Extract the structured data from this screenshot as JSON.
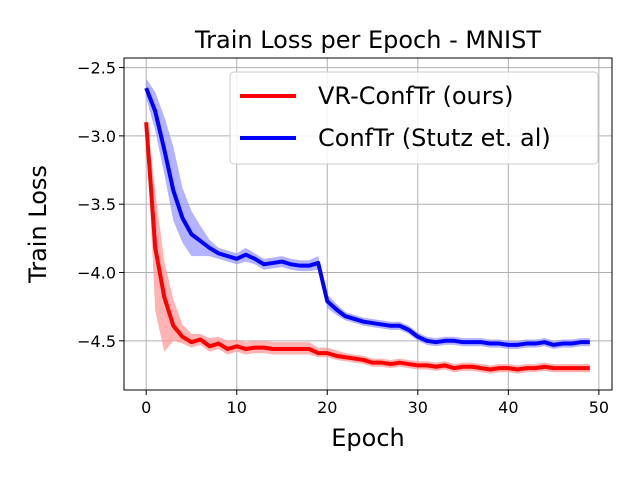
{
  "chart_data": {
    "type": "line",
    "title": "Train Loss per Epoch - MNIST",
    "xlabel": "Epoch",
    "ylabel": "Train Loss",
    "xlim": [
      -2.45,
      51.45
    ],
    "ylim": [
      -4.86,
      -2.43
    ],
    "xticks": [
      0,
      10,
      20,
      30,
      40,
      50
    ],
    "yticks": [
      -2.5,
      -3.0,
      -3.5,
      -4.0,
      -4.5
    ],
    "ytick_labels": [
      "−2.5",
      "−3.0",
      "−3.5",
      "−4.0",
      "−4.5"
    ],
    "grid": true,
    "legend_position": "top-right",
    "x": [
      0,
      1,
      2,
      3,
      4,
      5,
      6,
      7,
      8,
      9,
      10,
      11,
      12,
      13,
      14,
      15,
      16,
      17,
      18,
      19,
      20,
      21,
      22,
      23,
      24,
      25,
      26,
      27,
      28,
      29,
      30,
      31,
      32,
      33,
      34,
      35,
      36,
      37,
      38,
      39,
      40,
      41,
      42,
      43,
      44,
      45,
      46,
      47,
      48,
      49
    ],
    "series": [
      {
        "name": "VR-ConfTr (ours)",
        "color": "#ff0000",
        "band_color": "#ff9a9a",
        "values": [
          -2.9,
          -3.82,
          -4.18,
          -4.39,
          -4.47,
          -4.51,
          -4.49,
          -4.54,
          -4.52,
          -4.56,
          -4.54,
          -4.56,
          -4.55,
          -4.55,
          -4.56,
          -4.56,
          -4.56,
          -4.56,
          -4.56,
          -4.59,
          -4.59,
          -4.61,
          -4.62,
          -4.63,
          -4.64,
          -4.66,
          -4.66,
          -4.67,
          -4.66,
          -4.67,
          -4.68,
          -4.68,
          -4.69,
          -4.68,
          -4.7,
          -4.69,
          -4.69,
          -4.7,
          -4.71,
          -4.7,
          -4.7,
          -4.71,
          -4.7,
          -4.7,
          -4.69,
          -4.7,
          -4.7,
          -4.7,
          -4.7,
          -4.7
        ],
        "upper": [
          -2.88,
          -3.4,
          -3.92,
          -4.2,
          -4.38,
          -4.45,
          -4.45,
          -4.48,
          -4.47,
          -4.5,
          -4.49,
          -4.51,
          -4.5,
          -4.5,
          -4.51,
          -4.51,
          -4.51,
          -4.51,
          -4.51,
          -4.55,
          -4.55,
          -4.57,
          -4.59,
          -4.6,
          -4.61,
          -4.63,
          -4.63,
          -4.64,
          -4.63,
          -4.64,
          -4.65,
          -4.65,
          -4.66,
          -4.65,
          -4.67,
          -4.66,
          -4.66,
          -4.67,
          -4.68,
          -4.67,
          -4.67,
          -4.68,
          -4.67,
          -4.67,
          -4.66,
          -4.67,
          -4.67,
          -4.67,
          -4.67,
          -4.67
        ],
        "lower": [
          -2.92,
          -4.28,
          -4.58,
          -4.5,
          -4.52,
          -4.55,
          -4.53,
          -4.58,
          -4.56,
          -4.6,
          -4.58,
          -4.6,
          -4.59,
          -4.59,
          -4.6,
          -4.6,
          -4.6,
          -4.6,
          -4.6,
          -4.62,
          -4.62,
          -4.64,
          -4.65,
          -4.66,
          -4.67,
          -4.69,
          -4.69,
          -4.7,
          -4.69,
          -4.7,
          -4.71,
          -4.71,
          -4.72,
          -4.71,
          -4.73,
          -4.72,
          -4.72,
          -4.73,
          -4.74,
          -4.73,
          -4.73,
          -4.74,
          -4.73,
          -4.73,
          -4.72,
          -4.73,
          -4.73,
          -4.73,
          -4.73,
          -4.73
        ]
      },
      {
        "name": "ConfTr (Stutz et. al)",
        "color": "#0000ff",
        "band_color": "#9a9aff",
        "values": [
          -2.65,
          -2.82,
          -3.1,
          -3.4,
          -3.6,
          -3.72,
          -3.77,
          -3.82,
          -3.86,
          -3.88,
          -3.9,
          -3.87,
          -3.9,
          -3.94,
          -3.93,
          -3.92,
          -3.94,
          -3.95,
          -3.95,
          -3.93,
          -4.21,
          -4.27,
          -4.32,
          -4.34,
          -4.36,
          -4.37,
          -4.38,
          -4.39,
          -4.39,
          -4.42,
          -4.47,
          -4.5,
          -4.51,
          -4.5,
          -4.5,
          -4.51,
          -4.51,
          -4.51,
          -4.52,
          -4.52,
          -4.53,
          -4.53,
          -4.52,
          -4.52,
          -4.51,
          -4.53,
          -4.52,
          -4.52,
          -4.51,
          -4.51
        ],
        "upper": [
          -2.58,
          -2.68,
          -2.86,
          -3.08,
          -3.38,
          -3.55,
          -3.66,
          -3.76,
          -3.82,
          -3.84,
          -3.86,
          -3.82,
          -3.86,
          -3.9,
          -3.89,
          -3.88,
          -3.9,
          -3.91,
          -3.91,
          -3.88,
          -4.16,
          -4.23,
          -4.29,
          -4.31,
          -4.33,
          -4.34,
          -4.35,
          -4.36,
          -4.36,
          -4.39,
          -4.44,
          -4.47,
          -4.48,
          -4.47,
          -4.47,
          -4.48,
          -4.48,
          -4.48,
          -4.49,
          -4.49,
          -4.5,
          -4.5,
          -4.49,
          -4.49,
          -4.48,
          -4.5,
          -4.49,
          -4.49,
          -4.48,
          -4.48
        ],
        "lower": [
          -2.72,
          -2.96,
          -3.28,
          -3.62,
          -3.78,
          -3.88,
          -3.88,
          -3.88,
          -3.9,
          -3.92,
          -3.94,
          -3.92,
          -3.94,
          -3.98,
          -3.97,
          -3.96,
          -3.98,
          -3.99,
          -3.99,
          -3.98,
          -4.26,
          -4.31,
          -4.35,
          -4.37,
          -4.39,
          -4.4,
          -4.41,
          -4.42,
          -4.42,
          -4.45,
          -4.5,
          -4.53,
          -4.54,
          -4.53,
          -4.53,
          -4.54,
          -4.54,
          -4.54,
          -4.55,
          -4.55,
          -4.56,
          -4.56,
          -4.55,
          -4.55,
          -4.54,
          -4.56,
          -4.55,
          -4.55,
          -4.54,
          -4.54
        ]
      }
    ]
  }
}
